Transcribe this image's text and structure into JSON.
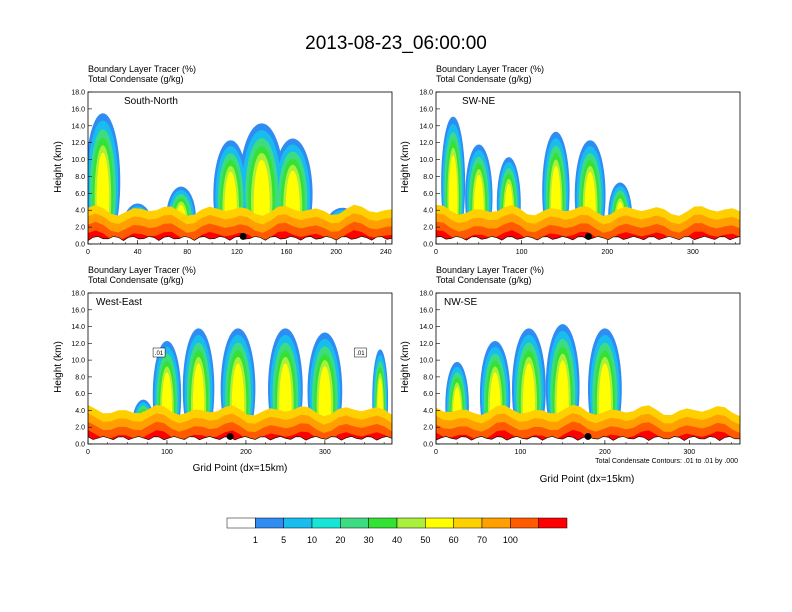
{
  "figure": {
    "title": "2013-08-23_06:00:00",
    "footnote": "Total Condensate Contours: .01 to .01 by .000"
  },
  "colorbar": {
    "labels": [
      "1",
      "5",
      "10",
      "20",
      "30",
      "40",
      "50",
      "60",
      "70",
      "100"
    ],
    "colors": [
      "#ffffff",
      "#2f8cf2",
      "#18bdf0",
      "#17e5d5",
      "#3ddc82",
      "#33e233",
      "#a8f03c",
      "#ffff00",
      "#ffd000",
      "#ffa000",
      "#ff5a00",
      "#ff0000"
    ]
  },
  "chart_data": [
    {
      "type": "heatmap",
      "label": "South-North",
      "title_line1": "Boundary Layer Tracer   (%)",
      "title_line2": "Total Condensate   (g/kg)",
      "ylabel": "Height (km)",
      "xlabel": "",
      "xlim": [
        0,
        245
      ],
      "ylim": [
        0,
        18
      ],
      "xticks": [
        "0",
        "40",
        "80",
        "120",
        "160",
        "200",
        "240"
      ],
      "yticks": [
        "0.0",
        "2.0",
        "4.0",
        "6.0",
        "8.0",
        "10.0",
        "12.0",
        "14.0",
        "16.0",
        "18.0"
      ],
      "marker_x": 125,
      "contour_lines": [],
      "plumes": [
        {
          "x": 12,
          "top": 16.2,
          "width": 14
        },
        {
          "x": 40,
          "top": 5.5,
          "width": 12
        },
        {
          "x": 75,
          "top": 7.5,
          "width": 12
        },
        {
          "x": 115,
          "top": 13.0,
          "width": 14
        },
        {
          "x": 140,
          "top": 15.0,
          "width": 18
        },
        {
          "x": 165,
          "top": 13.2,
          "width": 16
        },
        {
          "x": 205,
          "top": 5.0,
          "width": 14
        }
      ]
    },
    {
      "type": "heatmap",
      "label": "SW-NE",
      "title_line1": "Boundary Layer Tracer   (%)",
      "title_line2": "Total Condensate   (g/kg)",
      "ylabel": "Height (km)",
      "xlabel": "",
      "xlim": [
        0,
        355
      ],
      "ylim": [
        0,
        18
      ],
      "xticks": [
        "0",
        "100",
        "200",
        "300"
      ],
      "yticks": [
        "0.0",
        "2.0",
        "4.0",
        "6.0",
        "8.0",
        "10.0",
        "12.0",
        "14.0",
        "16.0",
        "18.0"
      ],
      "marker_x": 178,
      "contour_lines": [],
      "plumes": [
        {
          "x": 20,
          "top": 15.8,
          "width": 14
        },
        {
          "x": 50,
          "top": 12.5,
          "width": 16
        },
        {
          "x": 85,
          "top": 11.0,
          "width": 14
        },
        {
          "x": 140,
          "top": 14.0,
          "width": 16
        },
        {
          "x": 180,
          "top": 13.0,
          "width": 18
        },
        {
          "x": 215,
          "top": 8.0,
          "width": 14
        },
        {
          "x": 265,
          "top": 4.0,
          "width": 14
        },
        {
          "x": 310,
          "top": 3.0,
          "width": 12
        }
      ]
    },
    {
      "type": "heatmap",
      "label": "West-East",
      "title_line1": "Boundary Layer Tracer   (%)",
      "title_line2": "Total Condensate   (g/kg)",
      "ylabel": "Height (km)",
      "xlabel": "Grid Point (dx=15km)",
      "xlim": [
        0,
        385
      ],
      "ylim": [
        0,
        18
      ],
      "xticks": [
        "0",
        "100",
        "200",
        "300"
      ],
      "yticks": [
        "0.0",
        "2.0",
        "4.0",
        "6.0",
        "8.0",
        "10.0",
        "12.0",
        "14.0",
        "16.0",
        "18.0"
      ],
      "marker_x": 180,
      "contour_lines": [
        ".01",
        ".01"
      ],
      "plumes": [
        {
          "x": 70,
          "top": 6.0,
          "width": 14
        },
        {
          "x": 100,
          "top": 13.0,
          "width": 18
        },
        {
          "x": 140,
          "top": 14.5,
          "width": 20
        },
        {
          "x": 190,
          "top": 14.5,
          "width": 22
        },
        {
          "x": 250,
          "top": 14.5,
          "width": 22
        },
        {
          "x": 300,
          "top": 14.0,
          "width": 22
        },
        {
          "x": 370,
          "top": 12.0,
          "width": 10
        }
      ]
    },
    {
      "type": "heatmap",
      "label": "NW-SE",
      "title_line1": "Boundary Layer Tracer   (%)",
      "title_line2": "Total Condensate   (g/kg)",
      "ylabel": "Height (km)",
      "xlabel": "Grid Point (dx=15km)",
      "xlim": [
        0,
        360
      ],
      "ylim": [
        0,
        18
      ],
      "xticks": [
        "0",
        "100",
        "200",
        "300"
      ],
      "yticks": [
        "0.0",
        "2.0",
        "4.0",
        "6.0",
        "8.0",
        "10.0",
        "12.0",
        "14.0",
        "16.0",
        "18.0"
      ],
      "marker_x": 180,
      "contour_lines": [],
      "plumes": [
        {
          "x": 25,
          "top": 10.5,
          "width": 14
        },
        {
          "x": 70,
          "top": 13.0,
          "width": 18
        },
        {
          "x": 110,
          "top": 14.5,
          "width": 20
        },
        {
          "x": 150,
          "top": 15.0,
          "width": 20
        },
        {
          "x": 200,
          "top": 14.5,
          "width": 20
        },
        {
          "x": 330,
          "top": 3.0,
          "width": 12
        }
      ]
    }
  ]
}
